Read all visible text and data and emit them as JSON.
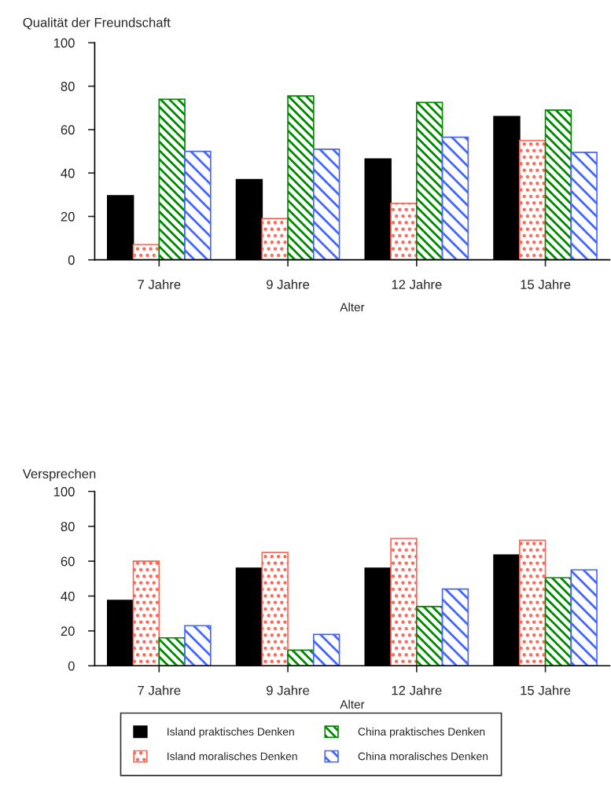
{
  "chart_data": [
    {
      "type": "bar",
      "ylabel": "Qualität der Freundschaft",
      "xlabel": "Alter",
      "categories": [
        "7 Jahre",
        "9 Jahre",
        "12 Jahre",
        "15 Jahre"
      ],
      "series": [
        {
          "color": "#000000",
          "values": [
            29.5,
            37,
            46.5,
            66
          ]
        },
        {
          "color": "#ff6655",
          "values": [
            7,
            19,
            26,
            55
          ]
        },
        {
          "color": "#008800",
          "values": [
            74,
            75.5,
            72.5,
            69
          ]
        },
        {
          "color": "#4466ff",
          "values": [
            50,
            51,
            56.5,
            49.5
          ]
        }
      ],
      "ylim": [
        0,
        100
      ],
      "yticks": [
        0,
        20,
        40,
        60,
        80,
        100
      ],
      "grid": false,
      "legend": false
    },
    {
      "type": "bar",
      "ylabel": "Versprechen",
      "xlabel": "Alter",
      "categories": [
        "7 Jahre",
        "9 Jahre",
        "12 Jahre",
        "15 Jahre"
      ],
      "series": [
        {
          "name": "Island praktisches Denken",
          "color": "#000000",
          "values": [
            37.5,
            56,
            56,
            63.5
          ]
        },
        {
          "name": "Island moralisches Denken",
          "color": "#ff6655",
          "values": [
            60,
            65,
            73,
            72
          ]
        },
        {
          "name": "China praktisches Denken",
          "color": "#008800",
          "values": [
            16,
            9,
            34,
            50.5
          ]
        },
        {
          "name": "China moralisches Denken",
          "color": "#4466ff",
          "values": [
            23,
            18,
            44,
            55
          ]
        }
      ],
      "ylim": [
        0,
        100
      ],
      "yticks": [
        0,
        20,
        40,
        60,
        80,
        100
      ],
      "grid": false,
      "legend": "bottom"
    }
  ]
}
